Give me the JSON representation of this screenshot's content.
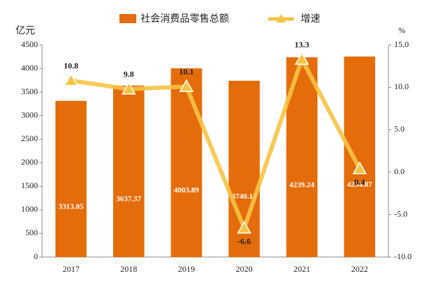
{
  "chart_data": {
    "type": "bar",
    "categories": [
      "2017",
      "2018",
      "2019",
      "2020",
      "2021",
      "2022"
    ],
    "series": [
      {
        "name": "社会消费品零售总额",
        "type": "bar",
        "color": "#e46c0a",
        "values": [
          3313.05,
          3637.37,
          4003.89,
          3740.14,
          4239.24,
          4254.87
        ]
      },
      {
        "name": "增速",
        "type": "line",
        "axis": "y2",
        "color": "#f6c445",
        "values": [
          10.8,
          9.8,
          10.1,
          -6.6,
          13.3,
          0.4
        ]
      }
    ],
    "y_label": "亿元",
    "y2_label": "%",
    "ylim": [
      0,
      4500
    ],
    "yticks": [
      0,
      500,
      1000,
      1500,
      2000,
      2500,
      3000,
      3500,
      4000,
      4500
    ],
    "y2lim": [
      -10,
      15
    ],
    "y2ticks": [
      {
        "value": -10,
        "label": "-10.0"
      },
      {
        "value": -5,
        "label": "-5.0"
      },
      {
        "value": 0,
        "label": "0.0"
      },
      {
        "value": 5,
        "label": "5.0"
      },
      {
        "value": 10,
        "label": "10.0"
      },
      {
        "value": 15,
        "label": "15.0"
      }
    ],
    "grid": false,
    "legend": "top"
  }
}
